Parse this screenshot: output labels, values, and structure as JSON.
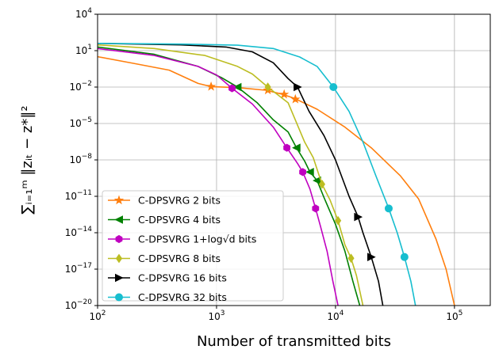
{
  "chart_data": {
    "type": "line",
    "title": "",
    "xlabel": "Number of transmitted bits",
    "ylabel": "∑ᵢ₌₁ᵐ ‖zᵢₜ − z*‖²",
    "xscale": "log",
    "yscale": "log",
    "xlim": [
      100,
      200000
    ],
    "ylim": [
      1e-20,
      10000
    ],
    "grid": true,
    "legend_position": "lower-left",
    "x_ticks": [
      {
        "base": "10",
        "exp": "2",
        "value": 100
      },
      {
        "base": "10",
        "exp": "3",
        "value": 1000
      },
      {
        "base": "10",
        "exp": "4",
        "value": 10000
      },
      {
        "base": "10",
        "exp": "5",
        "value": 100000
      }
    ],
    "y_ticks": [
      {
        "base": "10",
        "exp": "4",
        "value": 10000
      },
      {
        "base": "10",
        "exp": "1",
        "value": 10
      },
      {
        "base": "10",
        "exp": "−2",
        "value": 0.01
      },
      {
        "base": "10",
        "exp": "−5",
        "value": 1e-05
      },
      {
        "base": "10",
        "exp": "−8",
        "value": 1e-08
      },
      {
        "base": "10",
        "exp": "−11",
        "value": 1e-11
      },
      {
        "base": "10",
        "exp": "−14",
        "value": 1e-14
      },
      {
        "base": "10",
        "exp": "−17",
        "value": 1e-17
      },
      {
        "base": "10",
        "exp": "−20",
        "value": 1e-20
      }
    ],
    "series": [
      {
        "name": "C-DPSVRG 2 bits",
        "color": "#ff7f0e",
        "marker": "star",
        "x": [
          100,
          200,
          400,
          700,
          900,
          1500,
          2600,
          3600,
          4500,
          7000,
          12000,
          20000,
          35000,
          50000,
          70000,
          85000,
          100000
        ],
        "y": [
          3.2,
          0.9,
          0.25,
          0.02,
          0.011,
          0.009,
          0.0055,
          0.0025,
          0.0012,
          0.00015,
          5e-06,
          1e-07,
          5e-10,
          6e-12,
          3e-15,
          1e-17,
          1e-20
        ],
        "marker_x": [
          900,
          2700,
          3700,
          4600
        ],
        "marker_y": [
          0.011,
          0.0055,
          0.0025,
          0.001
        ]
      },
      {
        "name": "C-DPSVRG 4 bits",
        "color": "#008000",
        "marker": "triangle-left",
        "x": [
          100,
          300,
          700,
          1100,
          1500,
          2200,
          3000,
          4000,
          4700,
          5500,
          6100,
          7000,
          8000,
          10000,
          12000,
          14000,
          16000
        ],
        "y": [
          20,
          5,
          0.5,
          0.06,
          0.01,
          0.0005,
          2e-05,
          2e-06,
          1e-07,
          8e-09,
          1e-09,
          2e-10,
          8e-12,
          5e-14,
          3e-16,
          1e-18,
          1e-20
        ],
        "marker_x": [
          1500,
          4700,
          6100,
          7000
        ],
        "marker_y": [
          0.01,
          1e-07,
          1e-09,
          2e-10
        ]
      },
      {
        "name": "C-DPSVRG 1+log√d bits",
        "color": "#c000c0",
        "marker": "hexagon",
        "x": [
          100,
          300,
          700,
          1000,
          1350,
          2000,
          3000,
          3900,
          4800,
          5300,
          6100,
          6800,
          7500,
          8500,
          9500,
          10500
        ],
        "y": [
          15,
          4,
          0.5,
          0.1,
          0.008,
          0.0004,
          5e-06,
          1e-07,
          5e-09,
          1e-09,
          4e-11,
          1e-12,
          3e-14,
          3e-16,
          1e-18,
          1e-20
        ],
        "marker_x": [
          1350,
          3900,
          5300,
          6800
        ],
        "marker_y": [
          0.008,
          1e-07,
          1e-09,
          1e-12
        ]
      },
      {
        "name": "C-DPSVRG 8 bits",
        "color": "#bcbd22",
        "marker": "diamond",
        "x": [
          100,
          300,
          800,
          1500,
          2000,
          2700,
          4000,
          5500,
          6500,
          7700,
          9000,
          10500,
          12000,
          13500,
          15000,
          17000
        ],
        "y": [
          30,
          15,
          4,
          0.5,
          0.12,
          0.01,
          0.0005,
          3e-07,
          1.5e-08,
          1e-10,
          5e-12,
          1e-13,
          1e-15,
          8e-17,
          3e-18,
          1e-20
        ],
        "marker_x": [
          2700,
          7700,
          10500,
          13500
        ],
        "marker_y": [
          0.01,
          1e-10,
          1e-13,
          8e-17
        ]
      },
      {
        "name": "C-DPSVRG 16 bits",
        "color": "#000000",
        "marker": "triangle-right",
        "x": [
          100,
          500,
          1200,
          2000,
          3000,
          4000,
          4800,
          6000,
          8000,
          10000,
          13000,
          15500,
          17000,
          20000,
          23000,
          25000
        ],
        "y": [
          40,
          30,
          20,
          8,
          1,
          0.05,
          0.01,
          0.0001,
          1e-06,
          1e-08,
          1e-11,
          2e-13,
          1e-14,
          1e-16,
          1e-18,
          1e-20
        ],
        "marker_x": [
          4800,
          15500,
          20000
        ],
        "marker_y": [
          0.01,
          2e-13,
          1e-16
        ]
      },
      {
        "name": "C-DPSVRG 32 bits",
        "color": "#17becf",
        "marker": "circle",
        "x": [
          100,
          500,
          1500,
          3000,
          5000,
          7000,
          9600,
          13000,
          17000,
          22000,
          28000,
          33000,
          38000,
          43000,
          47000
        ],
        "y": [
          40,
          35,
          28,
          15,
          3,
          0.5,
          0.01,
          0.0001,
          3e-07,
          4e-10,
          1e-12,
          1e-14,
          1e-16,
          1e-18,
          1e-20
        ],
        "marker_x": [
          9600,
          28000,
          38000
        ],
        "marker_y": [
          0.01,
          1e-12,
          1e-16
        ]
      }
    ]
  }
}
